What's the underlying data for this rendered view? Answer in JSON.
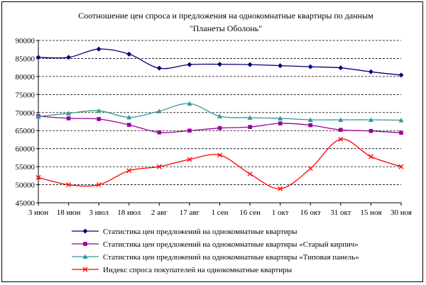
{
  "chart_data": {
    "type": "line",
    "title_line1": "Соотношение цен спроса и предложения на однокомнатные квартиры по данным",
    "title_line2": "\"Планеты Оболонь\"",
    "categories": [
      "3 июн",
      "18 июн",
      "3 июл",
      "18 июл",
      "2 авг",
      "17 авг",
      "1 сен",
      "16 сен",
      "1 окт",
      "16 окт",
      "31 окт",
      "15 ноя",
      "30 ноя"
    ],
    "ylim": [
      45000,
      90000
    ],
    "ytick_step": 5000,
    "yticks": [
      "45000",
      "50000",
      "55000",
      "60000",
      "65000",
      "70000",
      "75000",
      "80000",
      "85000",
      "90000"
    ],
    "grid": "horizontal-dashed",
    "legend_placement": "bottom",
    "series": [
      {
        "name": "Статистика цен предложений на однокомнатные квартиры",
        "color": "#000080",
        "marker": "diamond",
        "values": [
          85300,
          85300,
          87600,
          86200,
          82300,
          83300,
          83400,
          83300,
          83000,
          82700,
          82400,
          81300,
          80400
        ]
      },
      {
        "name": "Статистика цен предложений на однокомнатные квартиры «Старый кирпич»",
        "color": "#990099",
        "marker": "square",
        "values": [
          69000,
          68400,
          68200,
          66600,
          64500,
          65000,
          65700,
          66000,
          67000,
          66500,
          65200,
          64900,
          64400
        ]
      },
      {
        "name": "Статистика цен предложений на однокомнатные квартиры «Типовая панель»",
        "color": "#339999",
        "marker": "triangle",
        "values": [
          68900,
          69800,
          70500,
          68700,
          70400,
          72500,
          69000,
          68600,
          68400,
          68000,
          68000,
          68000,
          67900
        ]
      },
      {
        "name": "Индекс спроса покупателей на однокомнатные квартиры",
        "color": "#ff0000",
        "marker": "x",
        "values": [
          52000,
          50000,
          50000,
          53900,
          55000,
          57000,
          58200,
          53000,
          48900,
          54500,
          62600,
          57800,
          55000
        ]
      }
    ]
  }
}
